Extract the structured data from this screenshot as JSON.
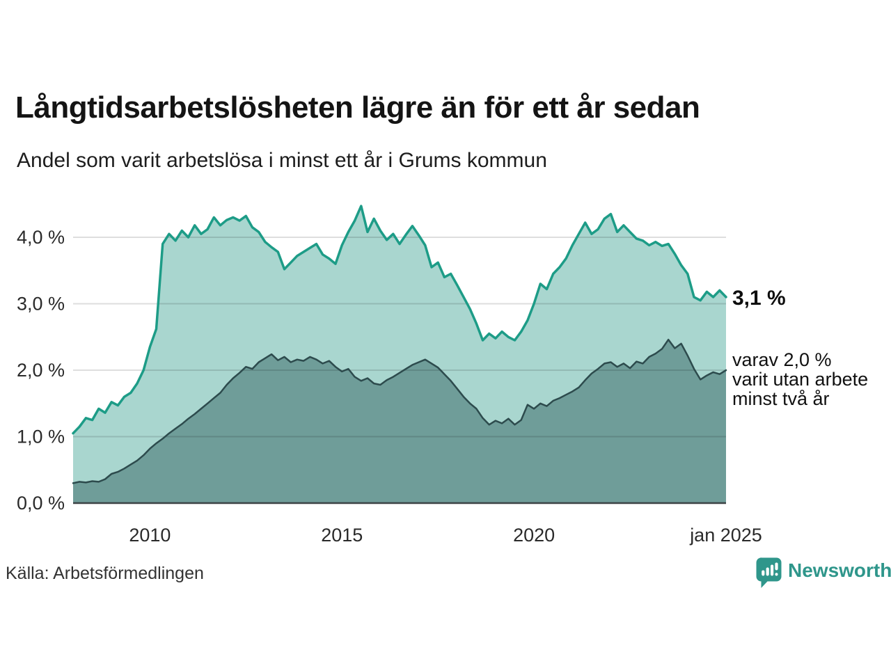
{
  "header": {
    "title": "Långtidsarbetslösheten lägre än för ett år sedan",
    "subtitle": "Andel som varit arbetslösa i minst ett år i Grums kommun"
  },
  "footer": {
    "source": "Källa: Arbetsförmedlingen",
    "brand": "Newsworthy",
    "brand_color": "#2f968b"
  },
  "chart_data": {
    "type": "area",
    "title": "Långtidsarbetslösheten lägre än för ett år sedan",
    "subtitle": "Andel som varit arbetslösa i minst ett år i Grums kommun",
    "unit": "%",
    "x_start_year": 2008,
    "x_end_year": 2025,
    "points_per_year": 6,
    "ylim": [
      0,
      4.6
    ],
    "grid": true,
    "gridline_color": "rgba(0,0,0,0.13)",
    "axis_color": "#3d4446",
    "tick_text_color": "#2a2a2a",
    "y_ticks": [
      {
        "value": 0,
        "label": "0,0 %"
      },
      {
        "value": 1,
        "label": "1,0 %"
      },
      {
        "value": 2,
        "label": "2,0 %"
      },
      {
        "value": 3,
        "label": "3,0 %"
      },
      {
        "value": 4,
        "label": "4,0 %"
      }
    ],
    "x_ticks": [
      {
        "year": 2010,
        "label": "2010"
      },
      {
        "year": 2015,
        "label": "2015"
      },
      {
        "year": 2020,
        "label": "2020"
      },
      {
        "year": 2025,
        "label": "jan 2025"
      }
    ],
    "series": [
      {
        "name": "Andel arbetslösa minst ett år",
        "line_color": "#1d9c87",
        "fill_color": "#a9d6cf",
        "line_width": 3.5,
        "last_value_label": "3,1 %",
        "values": [
          1.05,
          1.15,
          1.28,
          1.25,
          1.42,
          1.36,
          1.52,
          1.47,
          1.6,
          1.66,
          1.8,
          2.0,
          2.35,
          2.62,
          3.9,
          4.05,
          3.95,
          4.1,
          4.0,
          4.18,
          4.05,
          4.12,
          4.3,
          4.18,
          4.26,
          4.3,
          4.25,
          4.32,
          4.15,
          4.08,
          3.93,
          3.85,
          3.78,
          3.52,
          3.62,
          3.72,
          3.78,
          3.84,
          3.9,
          3.74,
          3.68,
          3.6,
          3.88,
          4.08,
          4.25,
          4.47,
          4.08,
          4.28,
          4.1,
          3.96,
          4.05,
          3.9,
          4.04,
          4.17,
          4.03,
          3.88,
          3.55,
          3.62,
          3.4,
          3.45,
          3.28,
          3.1,
          2.92,
          2.7,
          2.45,
          2.55,
          2.48,
          2.58,
          2.5,
          2.45,
          2.58,
          2.75,
          3.0,
          3.3,
          3.22,
          3.45,
          3.55,
          3.68,
          3.88,
          4.05,
          4.22,
          4.05,
          4.12,
          4.28,
          4.35,
          4.08,
          4.18,
          4.08,
          3.98,
          3.95,
          3.88,
          3.93,
          3.87,
          3.9,
          3.75,
          3.58,
          3.45,
          3.1,
          3.05,
          3.18,
          3.1,
          3.2,
          3.1
        ]
      },
      {
        "name": "Andel arbetslösa minst två år",
        "line_color": "#2d4b4d",
        "fill_color": "#6f9d99",
        "line_width": 2.5,
        "last_value_label": "2,0 %",
        "values": [
          0.3,
          0.32,
          0.31,
          0.33,
          0.32,
          0.36,
          0.44,
          0.47,
          0.52,
          0.58,
          0.64,
          0.72,
          0.82,
          0.9,
          0.97,
          1.05,
          1.12,
          1.19,
          1.27,
          1.34,
          1.42,
          1.5,
          1.58,
          1.66,
          1.78,
          1.88,
          1.96,
          2.05,
          2.02,
          2.12,
          2.18,
          2.24,
          2.15,
          2.2,
          2.12,
          2.16,
          2.14,
          2.2,
          2.16,
          2.1,
          2.14,
          2.05,
          1.98,
          2.02,
          1.9,
          1.84,
          1.88,
          1.8,
          1.78,
          1.85,
          1.9,
          1.96,
          2.02,
          2.08,
          2.12,
          2.16,
          2.1,
          2.04,
          1.94,
          1.84,
          1.72,
          1.6,
          1.5,
          1.42,
          1.28,
          1.18,
          1.24,
          1.2,
          1.27,
          1.18,
          1.25,
          1.48,
          1.42,
          1.5,
          1.46,
          1.54,
          1.58,
          1.63,
          1.68,
          1.74,
          1.85,
          1.95,
          2.02,
          2.1,
          2.12,
          2.05,
          2.1,
          2.03,
          2.13,
          2.1,
          2.2,
          2.25,
          2.32,
          2.46,
          2.33,
          2.4,
          2.22,
          2.02,
          1.86,
          1.92,
          1.97,
          1.94,
          2.0
        ]
      }
    ],
    "annotations": {
      "total_label": "3,1 %",
      "two_year_line1": "varav 2,0 %",
      "two_year_line2": "varit utan arbete",
      "two_year_line3": "minst två år"
    },
    "legend_position": "right-annotations"
  }
}
